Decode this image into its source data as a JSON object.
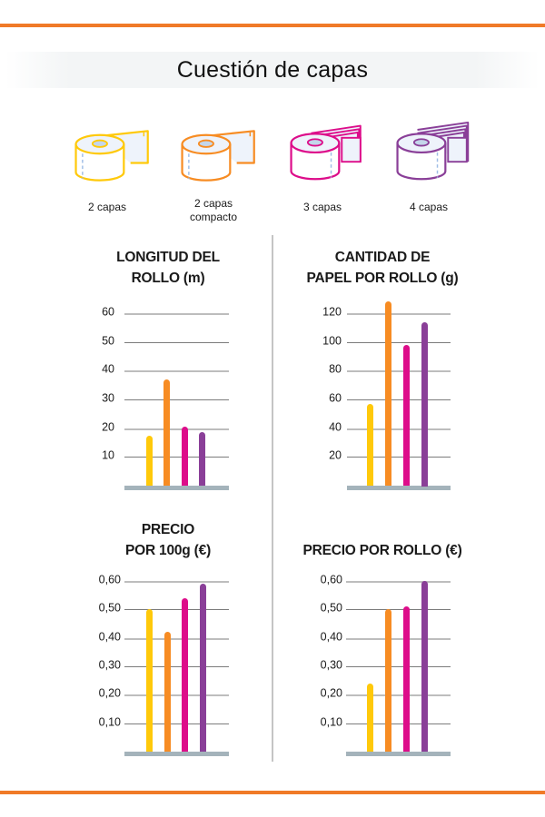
{
  "title": "Cuestión de capas",
  "colors": {
    "accent_rule": "#f07a28",
    "series": [
      "#ffc90a",
      "#f78c23",
      "#dd0d8a",
      "#8a3f98"
    ],
    "gridline_dark": "#7b7b7b",
    "gridline_light": "#bdbdbd",
    "baseline": "#a4b3bb"
  },
  "legend": [
    {
      "label": "2 capas",
      "icon": "toilet-roll-1-sheet-icon",
      "color": "#ffc90a"
    },
    {
      "label": "2 capas compacto",
      "label_line1": "2 capas",
      "label_line2": "compacto",
      "icon": "toilet-roll-1-sheet-icon",
      "color": "#f78c23"
    },
    {
      "label": "3 capas",
      "icon": "toilet-roll-3-sheets-icon",
      "color": "#dd0d8a"
    },
    {
      "label": "4 capas",
      "icon": "toilet-roll-4-sheets-icon",
      "color": "#8a3f98"
    }
  ],
  "charts": [
    {
      "title_line1": "LONGITUD DEL",
      "title_line2": "ROLLO (m)",
      "ticks": [
        "10",
        "20",
        "30",
        "40",
        "50",
        "60"
      ]
    },
    {
      "title_line1": "CANTIDAD DE",
      "title_line2": "PAPEL POR ROLLO (g)",
      "ticks": [
        "20",
        "40",
        "60",
        "80",
        "100",
        "120"
      ]
    },
    {
      "title_line1": "PRECIO",
      "title_line2": "POR 100g (€)",
      "ticks": [
        "0,10",
        "0,20",
        "0,30",
        "0,40",
        "0,50",
        "0,60"
      ]
    },
    {
      "title_line1": "",
      "title_line2": "PRECIO POR ROLLO (€)",
      "ticks": [
        "0,10",
        "0,20",
        "0,30",
        "0,40",
        "0,50",
        "0,60"
      ]
    }
  ],
  "chart_data": [
    {
      "type": "bar",
      "title": "LONGITUD DEL ROLLO (m)",
      "categories": [
        "2 capas",
        "2 capas compacto",
        "3 capas",
        "4 capas"
      ],
      "values": [
        17.5,
        37,
        20.5,
        18.5
      ],
      "xlabel": "",
      "ylabel": "m",
      "ylim": [
        0,
        60
      ],
      "yticks": [
        10,
        20,
        30,
        40,
        50,
        60
      ],
      "grid": true,
      "bar_colors": [
        "#ffc90a",
        "#f78c23",
        "#dd0d8a",
        "#8a3f98"
      ]
    },
    {
      "type": "bar",
      "title": "CANTIDAD DE PAPEL POR ROLLO (g)",
      "categories": [
        "2 capas",
        "2 capas compacto",
        "3 capas",
        "4 capas"
      ],
      "values": [
        57,
        128,
        98,
        114
      ],
      "xlabel": "",
      "ylabel": "g",
      "ylim": [
        0,
        120
      ],
      "yticks": [
        20,
        40,
        60,
        80,
        100,
        120
      ],
      "grid": true,
      "bar_colors": [
        "#ffc90a",
        "#f78c23",
        "#dd0d8a",
        "#8a3f98"
      ]
    },
    {
      "type": "bar",
      "title": "PRECIO POR 100g (€)",
      "categories": [
        "2 capas",
        "2 capas compacto",
        "3 capas",
        "4 capas"
      ],
      "values": [
        0.5,
        0.42,
        0.54,
        0.59
      ],
      "xlabel": "",
      "ylabel": "€",
      "ylim": [
        0,
        0.6
      ],
      "yticks": [
        0.1,
        0.2,
        0.3,
        0.4,
        0.5,
        0.6
      ],
      "grid": true,
      "bar_colors": [
        "#ffc90a",
        "#f78c23",
        "#dd0d8a",
        "#8a3f98"
      ]
    },
    {
      "type": "bar",
      "title": "PRECIO POR ROLLO (€)",
      "categories": [
        "2 capas",
        "2 capas compacto",
        "3 capas",
        "4 capas"
      ],
      "values": [
        0.24,
        0.5,
        0.51,
        0.6
      ],
      "xlabel": "",
      "ylabel": "€",
      "ylim": [
        0,
        0.6
      ],
      "yticks": [
        0.1,
        0.2,
        0.3,
        0.4,
        0.5,
        0.6
      ],
      "grid": true,
      "bar_colors": [
        "#ffc90a",
        "#f78c23",
        "#dd0d8a",
        "#8a3f98"
      ]
    }
  ]
}
